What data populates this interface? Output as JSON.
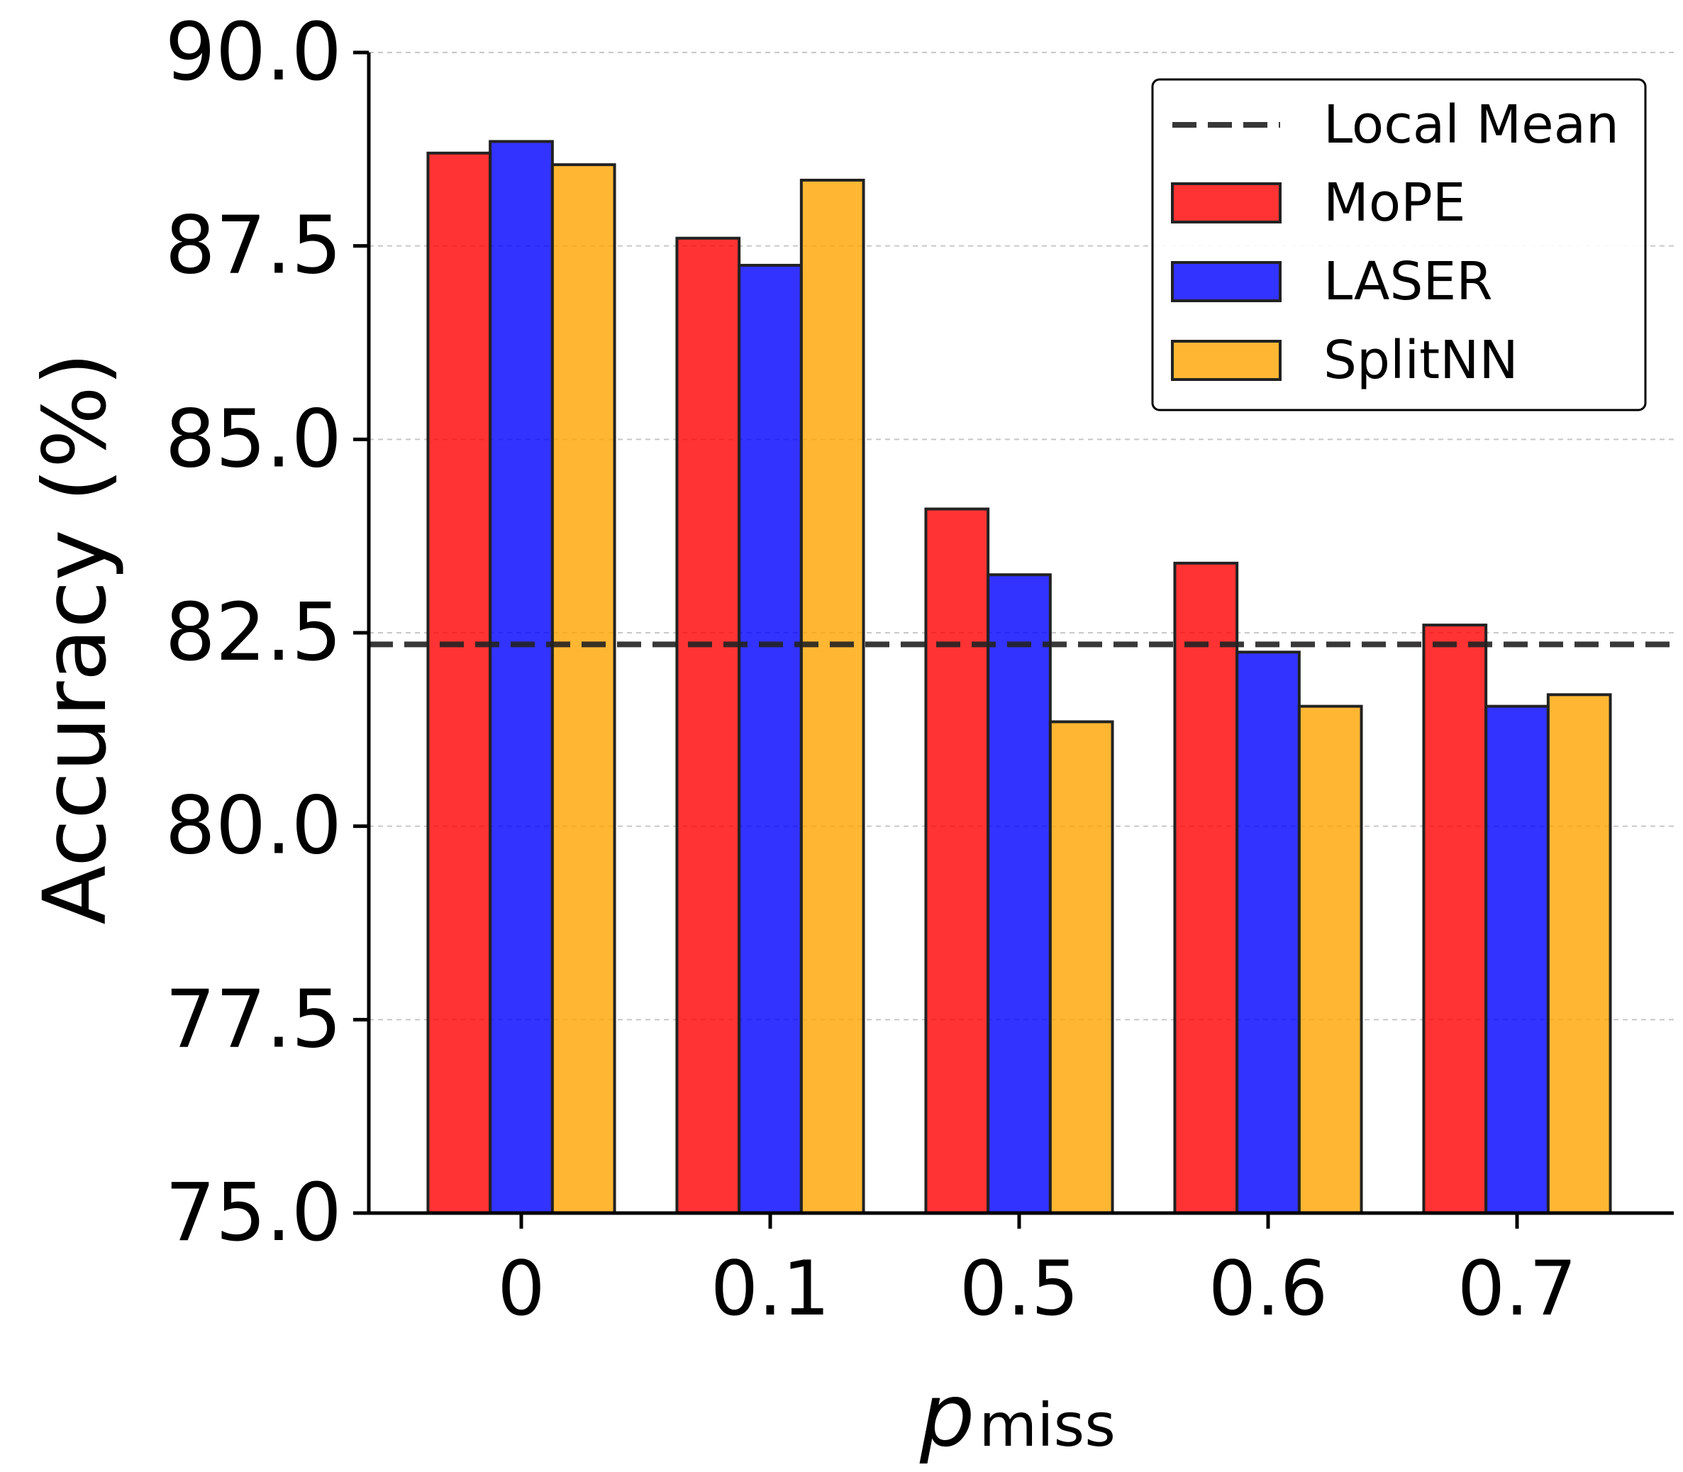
{
  "chart_data": {
    "type": "bar",
    "categories": [
      "0",
      "0.1",
      "0.5",
      "0.6",
      "0.7"
    ],
    "series": [
      {
        "name": "MoPE",
        "color": "#ff0000",
        "values": [
          88.7,
          87.6,
          84.1,
          83.4,
          82.6
        ]
      },
      {
        "name": "LASER",
        "color": "#0000ff",
        "values": [
          88.85,
          87.25,
          83.25,
          82.25,
          81.55
        ]
      },
      {
        "name": "SplitNN",
        "color": "#ffa500",
        "values": [
          88.55,
          88.35,
          81.35,
          81.55,
          81.7
        ]
      }
    ],
    "reference_line": {
      "name": "Local Mean",
      "value": 82.35,
      "color": "#222222",
      "style": "dashed"
    },
    "ylabel": "Accuracy (%)",
    "xlabel": {
      "main": "p",
      "subscript": "miss"
    },
    "ylim": [
      75.0,
      90.0
    ],
    "yticks": [
      "75.0",
      "77.5",
      "80.0",
      "82.5",
      "85.0",
      "87.5",
      "90.0"
    ],
    "ytick_values": [
      75.0,
      77.5,
      80.0,
      82.5,
      85.0,
      87.5,
      90.0
    ],
    "grid": "horizontal-dashed",
    "legend_position": "top-right",
    "legend": [
      "Local Mean",
      "MoPE",
      "LASER",
      "SplitNN"
    ]
  }
}
